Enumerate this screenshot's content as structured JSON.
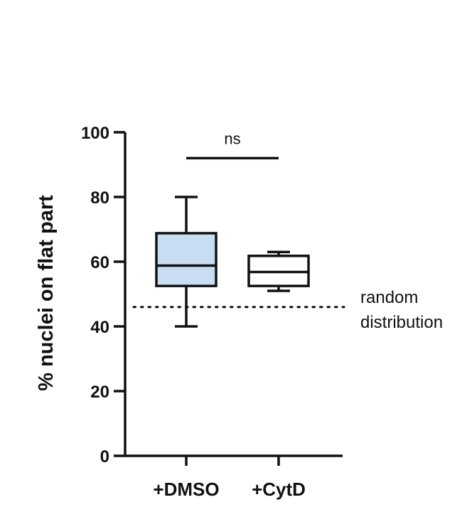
{
  "chart_data": {
    "type": "box",
    "ylabel": "% nuclei on flat part",
    "xlabel": "",
    "ylim": [
      0,
      100
    ],
    "yticks": [
      0,
      20,
      40,
      60,
      80,
      100
    ],
    "yticklabels": [
      "0",
      "20",
      "40",
      "60",
      "80",
      "100"
    ],
    "categories": [
      "+DMSO",
      "+CytD"
    ],
    "boxes": [
      {
        "category": "+DMSO",
        "min": 40,
        "q1": 52.5,
        "median": 58.8,
        "q3": 68.8,
        "max": 80,
        "fill": "#c9ddf2"
      },
      {
        "category": "+CytD",
        "min": 51,
        "q1": 52.5,
        "median": 56.8,
        "q3": 61.8,
        "max": 63,
        "fill": "#ffffff"
      }
    ],
    "reference_line": {
      "y": 46,
      "style": "dotted",
      "label_lines": [
        "random",
        "distribution"
      ]
    },
    "significance": {
      "between": [
        "+DMSO",
        "+CytD"
      ],
      "y": 92,
      "label": "ns"
    },
    "grid": false,
    "legend": "none"
  }
}
